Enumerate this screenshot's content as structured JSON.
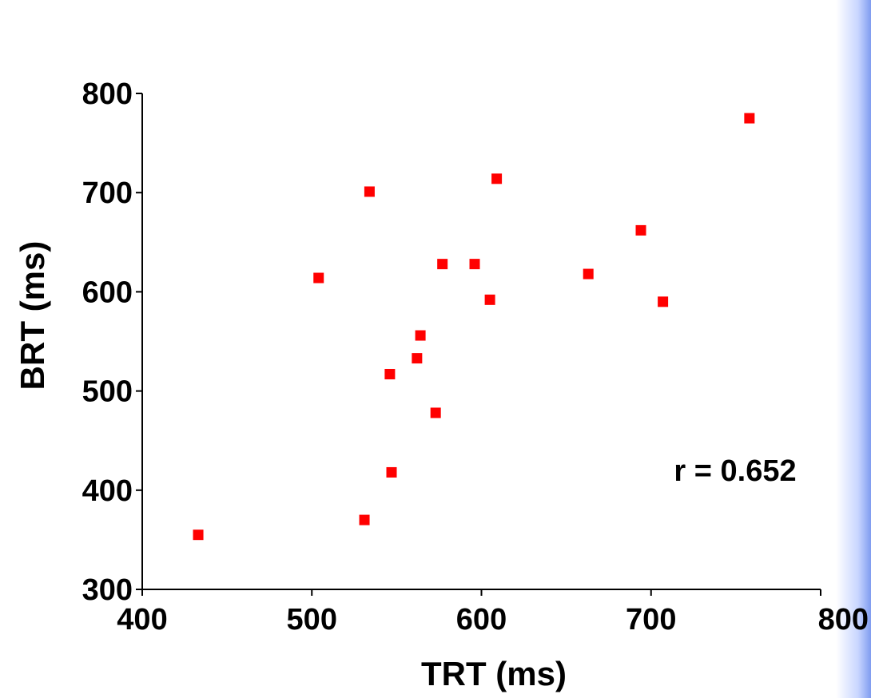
{
  "chart_data": {
    "type": "scatter",
    "title": "",
    "xlabel": "TRT (ms)",
    "ylabel": "BRT (ms)",
    "xlim": [
      400,
      800
    ],
    "ylim": [
      300,
      800
    ],
    "xticks": [
      "400",
      "500",
      "600",
      "700",
      "800"
    ],
    "yticks": [
      "300",
      "400",
      "500",
      "600",
      "700",
      "800"
    ],
    "grid": false,
    "annotation": "r = 0.652",
    "marker_color": "#ff0000",
    "points": [
      {
        "x": 433,
        "y": 355
      },
      {
        "x": 504,
        "y": 614
      },
      {
        "x": 531,
        "y": 370
      },
      {
        "x": 534,
        "y": 701
      },
      {
        "x": 546,
        "y": 517
      },
      {
        "x": 547,
        "y": 418
      },
      {
        "x": 562,
        "y": 533
      },
      {
        "x": 564,
        "y": 556
      },
      {
        "x": 573,
        "y": 478
      },
      {
        "x": 577,
        "y": 628
      },
      {
        "x": 596,
        "y": 628
      },
      {
        "x": 605,
        "y": 592
      },
      {
        "x": 609,
        "y": 714
      },
      {
        "x": 663,
        "y": 618
      },
      {
        "x": 694,
        "y": 662
      },
      {
        "x": 707,
        "y": 590
      },
      {
        "x": 758,
        "y": 775
      }
    ]
  }
}
